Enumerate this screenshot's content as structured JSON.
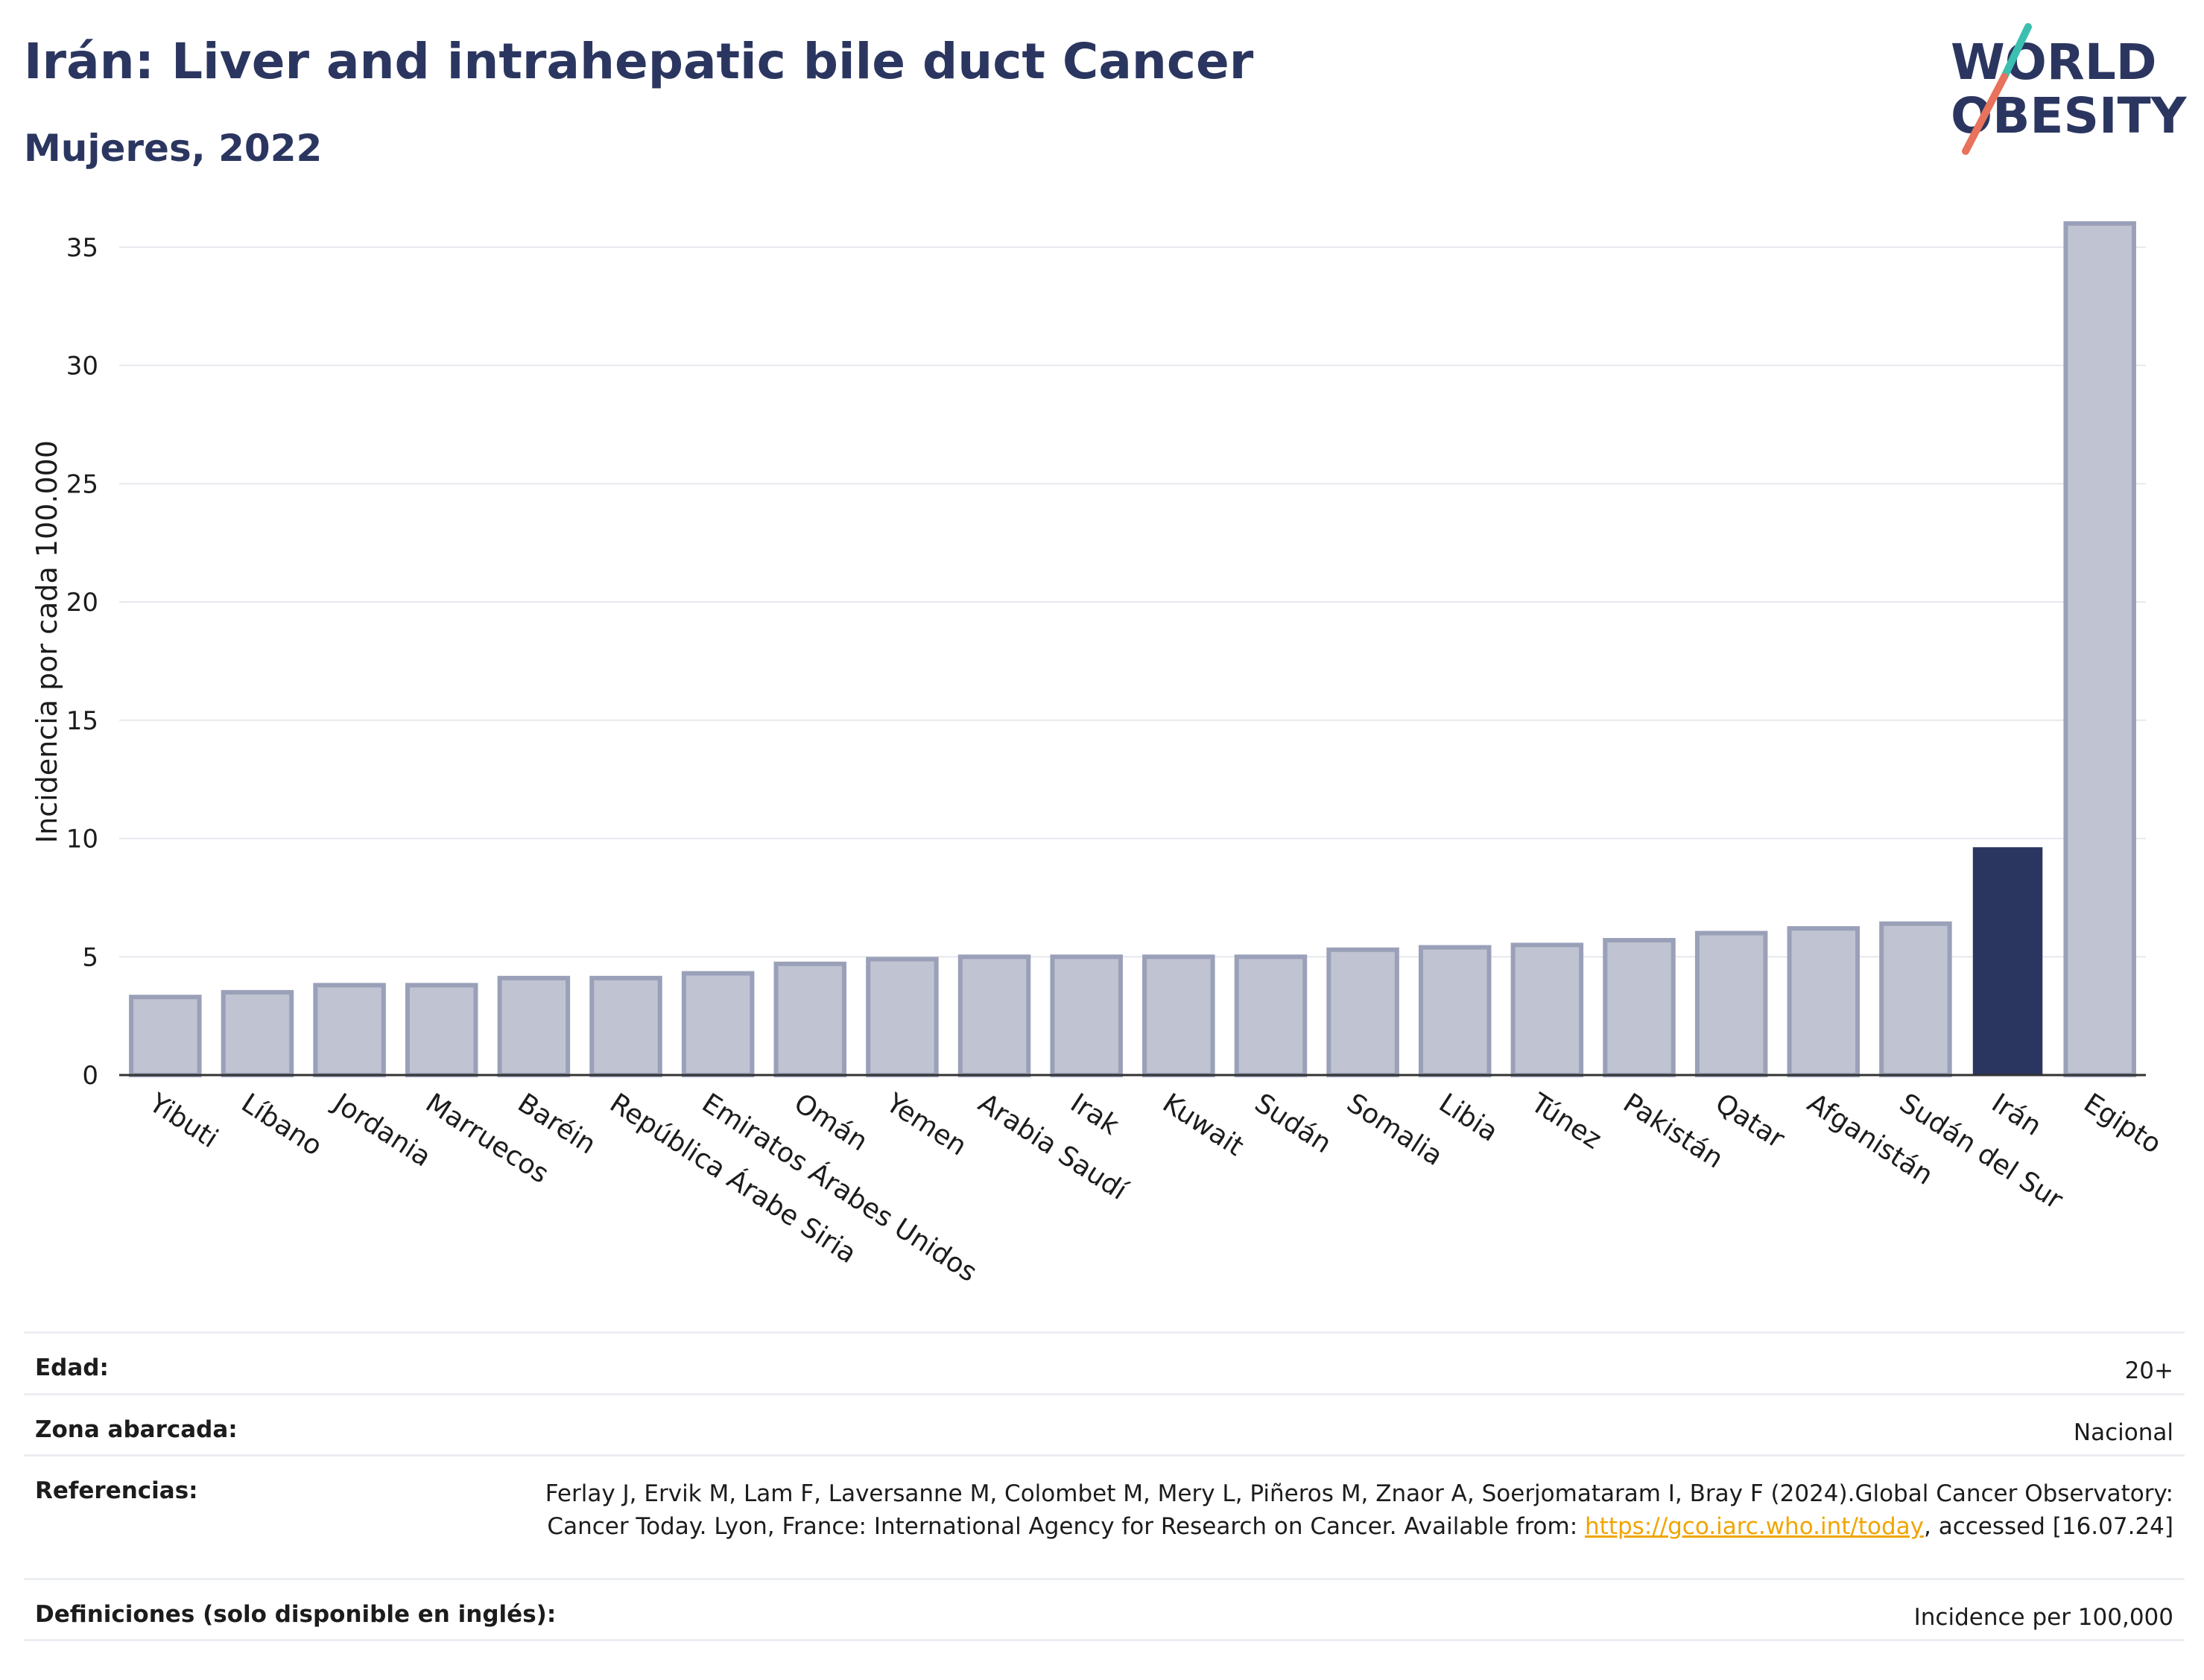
{
  "header": {
    "title": "Irán: Liver and intrahepatic bile duct Cancer",
    "subtitle": "Mujeres, 2022"
  },
  "logo": {
    "line1": "WORLD",
    "line2": "OBESITY",
    "accent_teal": "#3bbfb0",
    "accent_coral": "#e8725c"
  },
  "chart_data": {
    "type": "bar",
    "ylabel": "Incidencia por cada 100.000",
    "ylim": [
      0,
      36
    ],
    "yticks": [
      0,
      5,
      10,
      15,
      20,
      25,
      30,
      35
    ],
    "grid": true,
    "highlight_category": "Irán",
    "colors": {
      "bar": "#c0c3d1",
      "bar_border": "#9aa0b8",
      "highlight": "#2b3660"
    },
    "categories": [
      "Yibuti",
      "Líbano",
      "Jordania",
      "Marruecos",
      "Baréin",
      "República Árabe Siria",
      "Emiratos Árabes Unidos",
      "Omán",
      "Yemen",
      "Arabia Saudí",
      "Irak",
      "Kuwait",
      "Sudán",
      "Somalia",
      "Libia",
      "Túnez",
      "Pakistán",
      "Qatar",
      "Afganistán",
      "Sudán del Sur",
      "Irán",
      "Egipto"
    ],
    "values": [
      3.3,
      3.5,
      3.8,
      3.8,
      4.1,
      4.1,
      4.3,
      4.7,
      4.9,
      5.0,
      5.0,
      5.0,
      5.0,
      5.3,
      5.4,
      5.5,
      5.7,
      6.0,
      6.2,
      6.4,
      9.6,
      36.0
    ]
  },
  "info_table": {
    "age": {
      "label": "Edad:",
      "value": "20+"
    },
    "area": {
      "label": "Zona abarcada:",
      "value": "Nacional"
    },
    "references": {
      "label": "Referencias:",
      "text_before": "Ferlay J, Ervik M, Lam F, Laversanne M, Colombet M, Mery L, Piñeros M, Znaor A, Soerjomataram I, Bray F (2024).Global Cancer Observatory: Cancer Today. Lyon, France: International Agency for Research on Cancer. Available from: ",
      "link": "https://gco.iarc.who.int/today",
      "text_after": ", accessed [16.07.24]"
    },
    "definitions": {
      "label": "Definiciones (solo disponible en inglés):",
      "value": "Incidence per 100,000"
    }
  }
}
